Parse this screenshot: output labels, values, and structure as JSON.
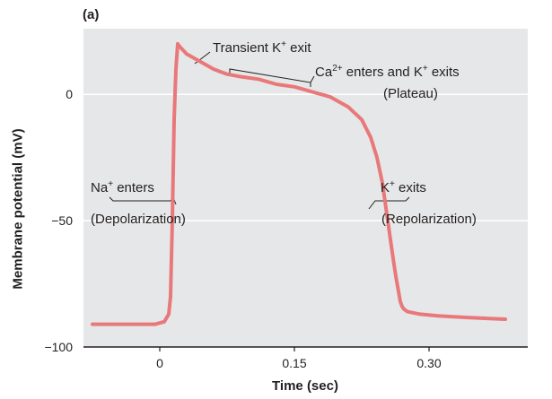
{
  "panel_label": "(a)",
  "chart_data": {
    "type": "line",
    "title": "",
    "xlabel": "Time (sec)",
    "ylabel": "Membrane potential (mV)",
    "xlim": [
      -0.085,
      0.41
    ],
    "ylim": [
      -100,
      26
    ],
    "x_ticks": [
      0,
      0.15,
      0.3
    ],
    "x_tick_labels": [
      "0",
      "0.15",
      "0.30"
    ],
    "y_ticks": [
      0,
      -50,
      -100
    ],
    "y_tick_labels": [
      "0",
      "−50",
      "−100"
    ],
    "grid": "horizontal lines at y ticks",
    "series_color": "#e8787a",
    "background_color": "#e6e7e8",
    "series": [
      {
        "x": [
          -0.075,
          -0.05,
          -0.02,
          -0.005,
          0.005,
          0.01,
          0.012,
          0.014,
          0.016,
          0.018,
          0.02,
          0.022,
          0.03,
          0.045,
          0.06,
          0.075,
          0.09,
          0.11,
          0.13,
          0.15,
          0.17,
          0.19,
          0.21,
          0.225,
          0.235,
          0.242,
          0.248,
          0.252,
          0.256,
          0.26,
          0.263,
          0.266,
          0.268,
          0.27,
          0.272,
          0.276,
          0.29,
          0.31,
          0.34,
          0.37,
          0.385
        ],
        "y": [
          -91,
          -91,
          -91,
          -91,
          -90,
          -87,
          -80,
          -50,
          -10,
          10,
          20,
          19,
          16,
          13,
          10,
          8,
          7,
          6,
          4,
          3,
          1,
          -1,
          -5,
          -10,
          -17,
          -25,
          -35,
          -45,
          -55,
          -65,
          -72,
          -78,
          -82,
          -84,
          -85,
          -86,
          -87,
          -87.7,
          -88.3,
          -88.8,
          -89
        ]
      }
    ],
    "annotations": [
      {
        "text": "Transient K+ exit",
        "at_x": 0.055
      },
      {
        "text": "Ca2+ enters and K+ exits",
        "note": "(Plateau)",
        "at_x": [
          0.075,
          0.195
        ]
      },
      {
        "text": "Na+ enters",
        "note": "(Depolarization)",
        "at_x": 0.01
      },
      {
        "text": "K+ exits",
        "note": "(Repolarization)",
        "at_x": 0.262
      }
    ]
  },
  "annotation_text": {
    "transient": {
      "pre": "Transient K",
      "sup": "+",
      "post": " exit"
    },
    "plateau": {
      "a": "Ca",
      "a_sup": "2+",
      "b": " enters and K",
      "b_sup": "+",
      "c": " exits",
      "note": "(Plateau)"
    },
    "na": {
      "a": "Na",
      "a_sup": "+",
      "b": " enters",
      "note": "(Depolarization)"
    },
    "k": {
      "a": "K",
      "a_sup": "+",
      "b": " exits",
      "note": "(Repolarization)"
    }
  }
}
